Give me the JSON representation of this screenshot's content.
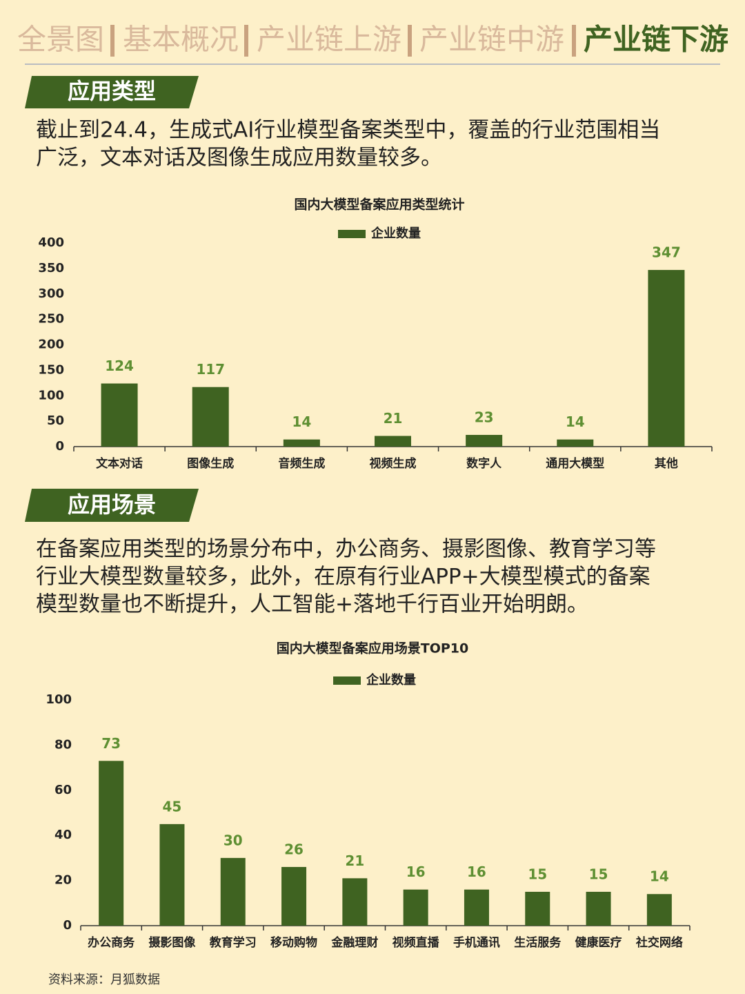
{
  "header": {
    "tabs": [
      "全景图",
      "基本概况",
      "产业链上游",
      "产业链中游",
      "产业链下游"
    ],
    "active": 4
  },
  "sections": [
    {
      "title": "应用类型",
      "text": [
        "截止到24.4，生成式AI行业模型备案类型中，覆盖的行业范围相当",
        "广泛，文本对话及图像生成应用数量较多。"
      ]
    },
    {
      "title": "应用场景",
      "text": [
        "在备案应用类型的场景分布中，办公商务、摄影图像、教育学习等",
        "行业大模型数量较多，此外，在原有行业APP+大模型模式的备案",
        "模型数量也不断提升，人工智能+落地千行百业开始明朗。"
      ]
    }
  ],
  "chart_data": [
    {
      "type": "bar",
      "title": "国内大模型备案应用类型统计",
      "categories": [
        "文本对话",
        "图像生成",
        "音频生成",
        "视频生成",
        "数字人",
        "通用大模型",
        "其他"
      ],
      "series": [
        {
          "name": "企业数量",
          "color": "#3f6321",
          "values": [
            124,
            117,
            14,
            21,
            23,
            14,
            347
          ]
        }
      ],
      "ylim": [
        0,
        400
      ],
      "yticks": [
        0,
        50,
        100,
        150,
        200,
        250,
        300,
        350,
        400
      ],
      "grid": false,
      "legend": "top",
      "label_color": "#5e8f32"
    },
    {
      "type": "bar",
      "title": "国内大模型备案应用场景TOP10",
      "categories": [
        "办公商务",
        "摄影图像",
        "教育学习",
        "移动购物",
        "金融理财",
        "视频直播",
        "手机通讯",
        "生活服务",
        "健康医疗",
        "社交网络"
      ],
      "series": [
        {
          "name": "企业数量",
          "color": "#3f6321",
          "values": [
            73,
            45,
            30,
            26,
            21,
            16,
            16,
            15,
            15,
            14
          ]
        }
      ],
      "ylim": [
        0,
        100
      ],
      "yticks": [
        0,
        20,
        40,
        60,
        80,
        100
      ],
      "grid": false,
      "legend": "top",
      "label_color": "#5e8f32"
    }
  ],
  "source": "资料来源：月狐数据"
}
